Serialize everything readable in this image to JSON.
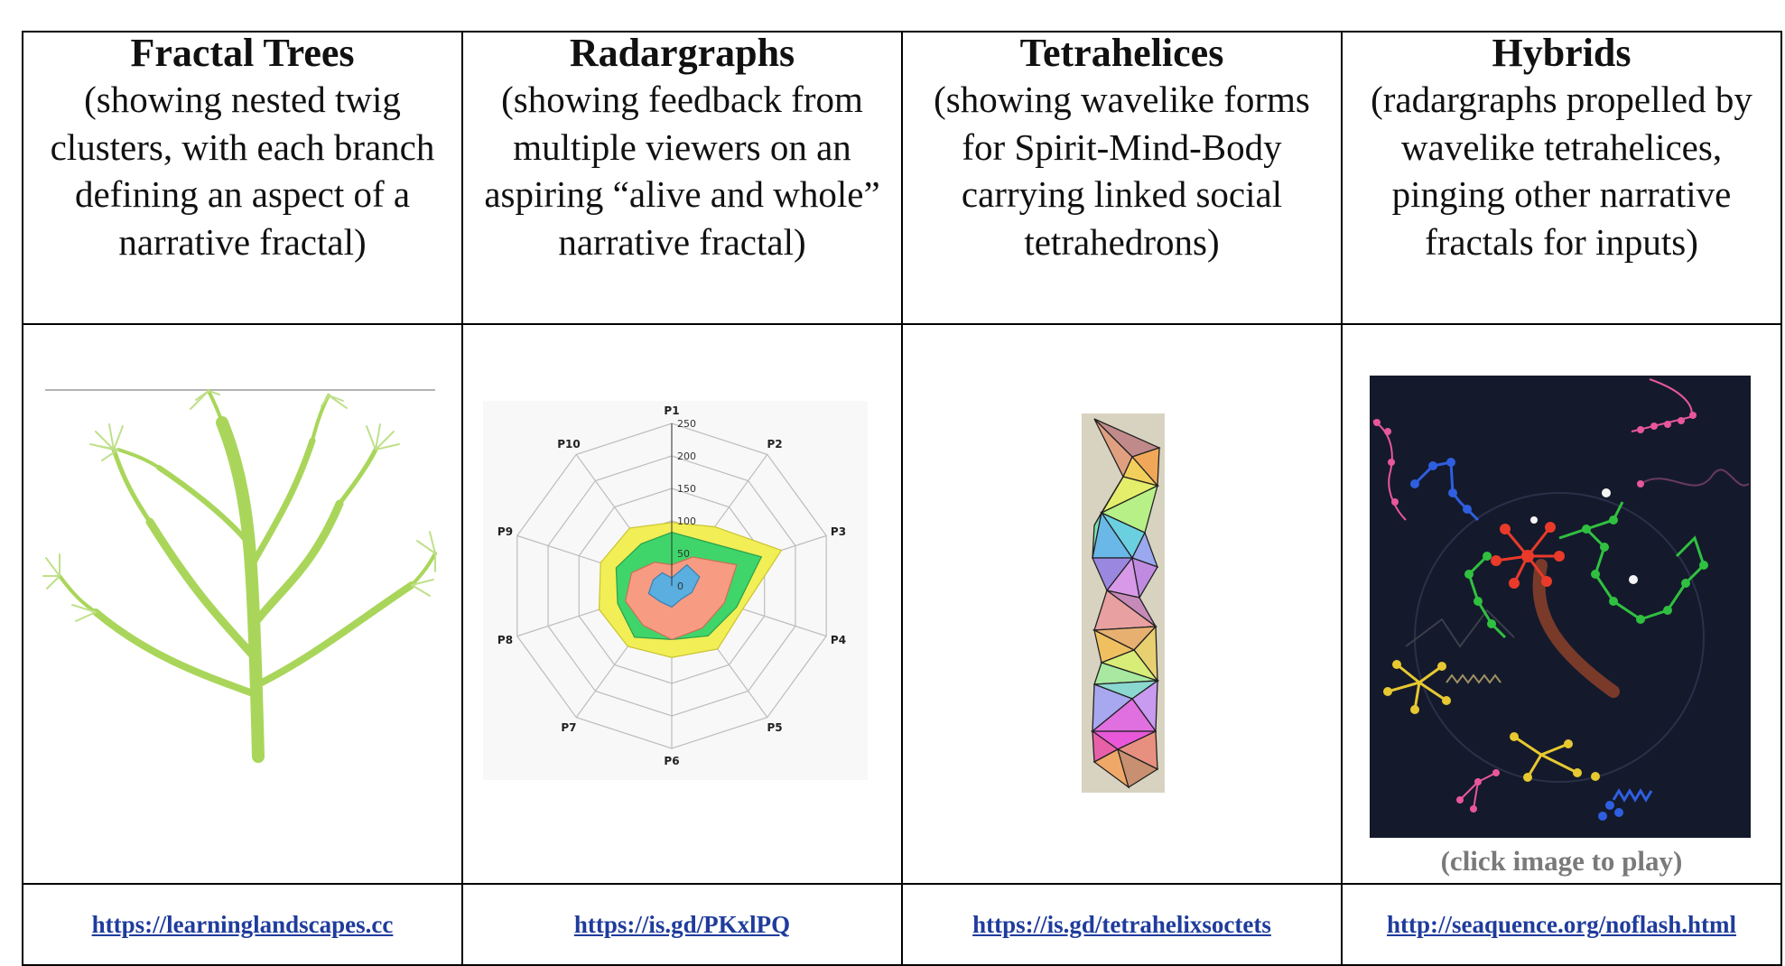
{
  "columns": [
    {
      "title": "Fractal Trees",
      "description": "(showing nested twig clusters, with each branch defining an aspect of a narrative fractal)",
      "image_icon": "fractal-tree",
      "link": "https://learninglandscapes.cc"
    },
    {
      "title": "Radargraphs",
      "description": "(showing feedback from multiple viewers on an aspiring “alive and whole” narrative fractal)",
      "image_icon": "radar-graph",
      "link": "https://is.gd/PKxlPQ"
    },
    {
      "title": "Tetrahelices",
      "description": "(showing wavelike forms for Spirit-Mind-Body carrying linked social tetrahedrons)",
      "image_icon": "tetrahelix",
      "link": "https://is.gd/tetrahelixsoctets"
    },
    {
      "title": "Hybrids",
      "description": "(radargraphs propelled by wavelike tetrahelices, pinging other narrative fractals for inputs)",
      "image_icon": "hybrid-animation",
      "caption": "(click image to play)",
      "link": "http://seaquence.org/noflash.html"
    }
  ],
  "radar": {
    "axes": [
      "P1",
      "P2",
      "P3",
      "P4",
      "P5",
      "P6",
      "P7",
      "P8",
      "P9",
      "P10"
    ],
    "ticks": [
      "250",
      "200",
      "150",
      "100",
      "50",
      "0"
    ],
    "colors": {
      "yellow": "#f2ee55",
      "green": "#3fd56a",
      "salmon": "#f79b82",
      "blue": "#5aaee0"
    }
  },
  "colors": {
    "link": "#1f3c9c",
    "tree": "#a9d65a",
    "hybrid_bg": "#141a2c"
  }
}
